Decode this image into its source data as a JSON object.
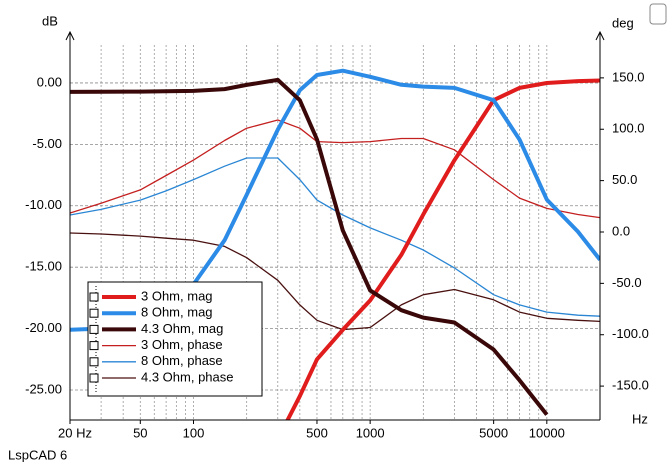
{
  "chart_data": {
    "type": "line",
    "y_label": "dB",
    "y2_label": "deg",
    "x_label": "Hz",
    "watermark": "LspCAD 6",
    "log_x": true,
    "grid": true,
    "legend": "lower left",
    "xlim": [
      20,
      20000
    ],
    "ylim": [
      -27.44,
      3.09
    ],
    "y2lim": [
      -183,
      182
    ],
    "xticks": [
      {
        "value": 20,
        "label": "20 Hz"
      },
      50,
      100,
      500,
      1000,
      5000,
      10000
    ],
    "xgrid": [
      20,
      30,
      40,
      50,
      60,
      70,
      80,
      90,
      100,
      200,
      300,
      400,
      500,
      600,
      700,
      800,
      900,
      1000,
      2000,
      3000,
      4000,
      5000,
      6000,
      7000,
      8000,
      9000,
      10000,
      20000
    ],
    "yticks": [
      {
        "value": 0,
        "label": "0.00"
      },
      {
        "value": -5,
        "label": "-5.00"
      },
      {
        "value": -10,
        "label": "-10.00"
      },
      {
        "value": -15,
        "label": "-15.00"
      },
      {
        "value": -20,
        "label": "-20.00"
      },
      {
        "value": -25,
        "label": "-25.00"
      }
    ],
    "y2ticks": [
      {
        "value": 150,
        "label": "150.0"
      },
      {
        "value": 100,
        "label": "100.0"
      },
      {
        "value": 50,
        "label": "50.0"
      },
      {
        "value": 0,
        "label": "0.0"
      },
      {
        "value": -50,
        "label": "-50.0"
      },
      {
        "value": -100,
        "label": "-100.0"
      },
      {
        "value": -150,
        "label": "-150.0"
      }
    ],
    "x": [
      20,
      30,
      50,
      70,
      100,
      150,
      200,
      300,
      400,
      500,
      700,
      1000,
      1500,
      2000,
      3000,
      5000,
      7000,
      10000,
      15000,
      20000
    ],
    "series": [
      {
        "name": "3 Ohm, mag",
        "color": "#e01c1c",
        "line_width": 4,
        "values": [
          null,
          null,
          null,
          null,
          null,
          null,
          null,
          -29,
          -25.5,
          -22.5,
          -20.1,
          -17.7,
          -14,
          -10.7,
          -6.3,
          -1.4,
          -0.4,
          0,
          0.15,
          0.2
        ]
      },
      {
        "name": "8 Ohm, mag",
        "color": "#2b8be6",
        "line_width": 4,
        "values": [
          -20.1,
          -20,
          -19.5,
          -18.2,
          -16.4,
          -12.8,
          -9.1,
          -3.8,
          -0.6,
          0.65,
          1.0,
          0.5,
          -0.15,
          -0.3,
          -0.4,
          -1.4,
          -4.6,
          -9.5,
          -12.1,
          -14.4
        ]
      },
      {
        "name": "4.3 Ohm, mag",
        "color": "#3a0808",
        "line_width": 4,
        "values": [
          -0.73,
          -0.72,
          -0.7,
          -0.68,
          -0.65,
          -0.5,
          -0.16,
          0.25,
          -1.4,
          -4.6,
          -12,
          -16.9,
          -18.5,
          -19.1,
          -19.5,
          -21.7,
          -24.2,
          -27,
          null,
          null
        ]
      },
      {
        "name": "3 Ohm, phase",
        "color": "#c42020",
        "line_width": 1.3,
        "axis": "y2",
        "values": [
          18.5,
          28,
          41,
          55,
          70,
          89,
          101,
          109,
          101,
          88,
          87,
          88,
          91,
          91,
          80,
          51,
          33,
          23,
          17,
          14
        ]
      },
      {
        "name": "8 Ohm, phase",
        "color": "#2a86d4",
        "line_width": 1.3,
        "axis": "y2",
        "values": [
          16.5,
          22,
          31,
          40,
          51,
          64,
          72,
          72,
          51,
          31,
          16.5,
          4,
          -8,
          -17.5,
          -35,
          -61,
          -71,
          -78,
          -81,
          -82
        ]
      },
      {
        "name": "4.3 Ohm, phase",
        "color": "#4a1010",
        "line_width": 1.3,
        "axis": "y2",
        "values": [
          -1,
          -2,
          -4,
          -6,
          -8,
          -14,
          -25,
          -47,
          -71,
          -86,
          -95,
          -93,
          -71,
          -61,
          -56,
          -66,
          -78,
          -84,
          -86,
          -87
        ]
      }
    ]
  }
}
